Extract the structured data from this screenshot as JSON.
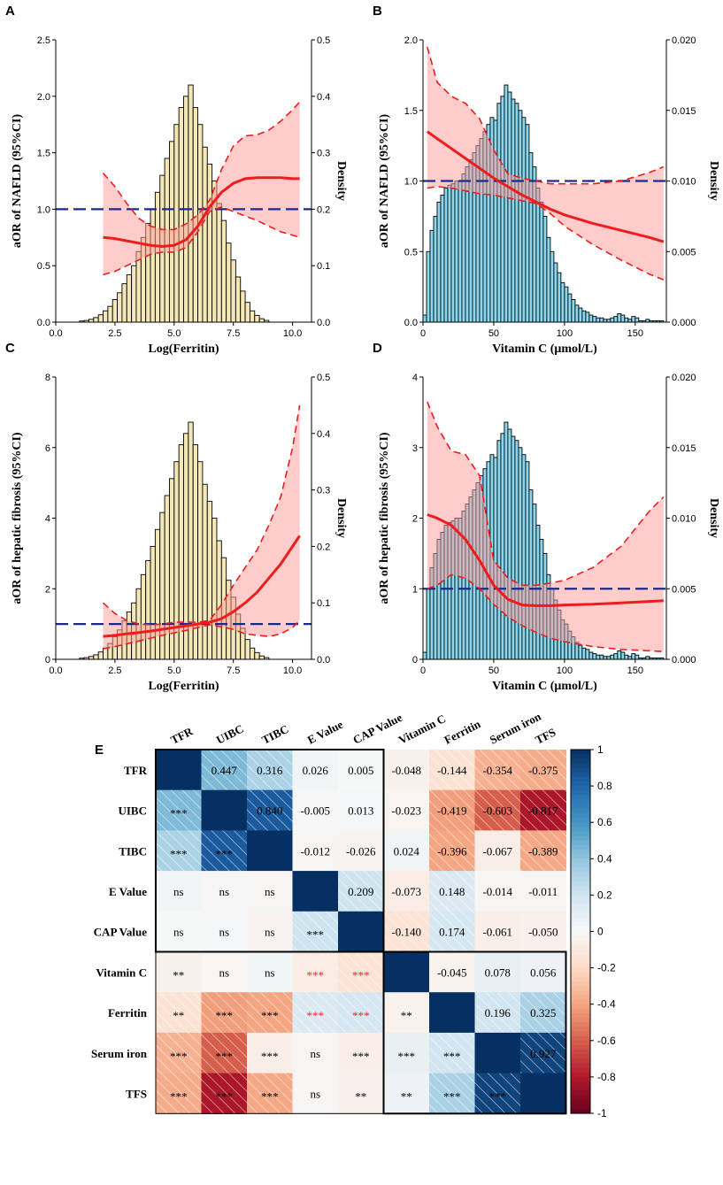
{
  "panels": [
    {
      "letter": "A",
      "type": "restricted-cubic-spline-with-histogram",
      "xlabel": "Log(Ferritin)",
      "ylabel": "aOR of NAFLD (95%CI)",
      "y2label": "Density",
      "xlim": [
        0,
        10.8
      ],
      "ylim": [
        0,
        2.5
      ],
      "y2lim": [
        0,
        0.5
      ],
      "xticks": [
        "0.0",
        "2.5",
        "5.0",
        "7.5",
        "10.0"
      ],
      "xtick_values": [
        0,
        2.5,
        5,
        7.5,
        10
      ],
      "yticks": [
        "0.0",
        "0.5",
        "1.0",
        "1.5",
        "2.0",
        "2.5"
      ],
      "ytick_values": [
        0,
        0.5,
        1,
        1.5,
        2,
        2.5
      ],
      "y2ticks": [
        "0.0",
        "0.1",
        "0.2",
        "0.3",
        "0.4",
        "0.5"
      ],
      "y2tick_values": [
        0,
        0.1,
        0.2,
        0.3,
        0.4,
        0.5
      ],
      "hist_color": "#f5e8b8",
      "hist": {
        "start": 1.0,
        "width": 0.2,
        "density": [
          0.002,
          0.003,
          0.005,
          0.008,
          0.013,
          0.02,
          0.028,
          0.04,
          0.052,
          0.068,
          0.084,
          0.1,
          0.125,
          0.15,
          0.175,
          0.2,
          0.23,
          0.26,
          0.29,
          0.32,
          0.35,
          0.38,
          0.4,
          0.42,
          0.38,
          0.35,
          0.31,
          0.28,
          0.25,
          0.21,
          0.18,
          0.14,
          0.11,
          0.08,
          0.055,
          0.035,
          0.02,
          0.012,
          0.006,
          0.003
        ]
      },
      "spline": {
        "x": [
          2,
          2.5,
          3,
          3.5,
          4,
          4.5,
          5,
          5.5,
          6,
          6.5,
          7,
          7.5,
          8,
          8.5,
          9,
          9.5,
          10,
          10.3
        ],
        "y": [
          0.75,
          0.74,
          0.72,
          0.7,
          0.68,
          0.67,
          0.68,
          0.73,
          0.85,
          1.02,
          1.15,
          1.23,
          1.27,
          1.28,
          1.28,
          1.28,
          1.27,
          1.27
        ],
        "lower": [
          0.42,
          0.45,
          0.5,
          0.55,
          0.6,
          0.62,
          0.62,
          0.66,
          0.8,
          0.98,
          1.02,
          0.98,
          0.94,
          0.9,
          0.85,
          0.8,
          0.77,
          0.75
        ],
        "upper": [
          1.32,
          1.2,
          1.05,
          0.92,
          0.85,
          0.82,
          0.82,
          0.87,
          0.95,
          1.08,
          1.35,
          1.56,
          1.65,
          1.66,
          1.7,
          1.78,
          1.88,
          1.95
        ]
      },
      "reference": 1.0
    },
    {
      "letter": "B",
      "type": "restricted-cubic-spline-with-histogram",
      "xlabel": "Vitamin C (μmol/L)",
      "ylabel": "aOR of NAFLD (95%CI)",
      "y2label": "Density",
      "xlim": [
        0,
        172
      ],
      "ylim": [
        0,
        2.0
      ],
      "y2lim": [
        0,
        0.02
      ],
      "xticks": [
        "0",
        "50",
        "100",
        "150"
      ],
      "xtick_values": [
        0,
        50,
        100,
        150
      ],
      "yticks": [
        "0.0",
        "0.5",
        "1.0",
        "1.5",
        "2.0"
      ],
      "ytick_values": [
        0,
        0.5,
        1,
        1.5,
        2
      ],
      "y2ticks": [
        "0.000",
        "0.005",
        "0.010",
        "0.015",
        "0.020"
      ],
      "y2tick_values": [
        0,
        0.005,
        0.01,
        0.015,
        0.02
      ],
      "hist_color": "#8ad8ef",
      "hist": {
        "start": 0,
        "width": 2.5,
        "density": [
          0.0005,
          0.005,
          0.0065,
          0.0075,
          0.0085,
          0.009,
          0.0095,
          0.0097,
          0.0098,
          0.01,
          0.01,
          0.0105,
          0.011,
          0.0115,
          0.012,
          0.0125,
          0.013,
          0.0135,
          0.014,
          0.0145,
          0.0143,
          0.0155,
          0.016,
          0.0168,
          0.0163,
          0.0158,
          0.0155,
          0.015,
          0.0145,
          0.014,
          0.012,
          0.011,
          0.0095,
          0.0085,
          0.0075,
          0.006,
          0.005,
          0.0042,
          0.0035,
          0.0028,
          0.0025,
          0.002,
          0.0016,
          0.0012,
          0.001,
          0.0008,
          0.0007,
          0.0005,
          0.0004,
          0.0003,
          0.0003,
          0.0002,
          0.0002,
          0.0003,
          0.0004,
          0.0006,
          0.0005,
          0.0003,
          0.0002,
          0.0004,
          0.0003,
          0.0001,
          0.0001,
          0.0002,
          0.0001,
          0.0001,
          0.0001,
          0.0001
        ]
      },
      "spline": {
        "x": [
          3,
          10,
          20,
          30,
          40,
          50,
          60,
          70,
          80,
          90,
          100,
          120,
          140,
          160,
          170
        ],
        "y": [
          1.35,
          1.3,
          1.23,
          1.16,
          1.09,
          1.02,
          0.96,
          0.9,
          0.85,
          0.8,
          0.76,
          0.7,
          0.65,
          0.6,
          0.57
        ],
        "lower": [
          0.95,
          0.96,
          0.95,
          0.93,
          0.91,
          0.9,
          0.88,
          0.86,
          0.84,
          0.77,
          0.68,
          0.55,
          0.44,
          0.34,
          0.3
        ],
        "upper": [
          1.95,
          1.7,
          1.6,
          1.55,
          1.44,
          1.22,
          1.05,
          1.02,
          1.0,
          0.98,
          0.98,
          0.98,
          1.0,
          1.06,
          1.1
        ]
      },
      "reference": 1.0
    },
    {
      "letter": "C",
      "type": "restricted-cubic-spline-with-histogram",
      "xlabel": "Log(Ferritin)",
      "ylabel": "aOR of hepatic fibrosis (95%CI)",
      "y2label": "Density",
      "xlim": [
        0,
        10.8
      ],
      "ylim": [
        0,
        8
      ],
      "y2lim": [
        0,
        0.5
      ],
      "xticks": [
        "0.0",
        "2.5",
        "5.0",
        "7.5",
        "10.0"
      ],
      "xtick_values": [
        0,
        2.5,
        5,
        7.5,
        10
      ],
      "yticks": [
        "0",
        "2",
        "4",
        "6",
        "8"
      ],
      "ytick_values": [
        0,
        2,
        4,
        6,
        8
      ],
      "y2ticks": [
        "0.0",
        "0.1",
        "0.2",
        "0.3",
        "0.4",
        "0.5"
      ],
      "y2tick_values": [
        0,
        0.1,
        0.2,
        0.3,
        0.4,
        0.5
      ],
      "hist_color": "#f5e8b8",
      "hist": {
        "start": 1.0,
        "width": 0.2,
        "density": [
          0.002,
          0.003,
          0.005,
          0.008,
          0.013,
          0.02,
          0.028,
          0.04,
          0.052,
          0.068,
          0.084,
          0.1,
          0.125,
          0.15,
          0.175,
          0.2,
          0.23,
          0.26,
          0.29,
          0.32,
          0.35,
          0.38,
          0.4,
          0.42,
          0.38,
          0.35,
          0.31,
          0.28,
          0.25,
          0.21,
          0.18,
          0.14,
          0.11,
          0.08,
          0.055,
          0.035,
          0.02,
          0.012,
          0.006,
          0.003
        ]
      },
      "spline": {
        "x": [
          2,
          2.5,
          3,
          3.5,
          4,
          4.5,
          5,
          5.5,
          6,
          6.5,
          7,
          7.5,
          8,
          8.5,
          9,
          9.5,
          10,
          10.3
        ],
        "y": [
          0.65,
          0.68,
          0.72,
          0.76,
          0.8,
          0.85,
          0.9,
          0.95,
          1.0,
          1.05,
          1.15,
          1.35,
          1.6,
          1.9,
          2.3,
          2.7,
          3.2,
          3.5
        ],
        "lower": [
          0.3,
          0.36,
          0.44,
          0.52,
          0.6,
          0.68,
          0.75,
          0.82,
          0.9,
          0.98,
          0.92,
          0.85,
          0.72,
          0.68,
          0.65,
          0.72,
          0.9,
          1.1
        ],
        "upper": [
          1.6,
          1.3,
          1.1,
          1.0,
          0.98,
          1.0,
          1.05,
          1.05,
          1.05,
          1.1,
          1.55,
          2.1,
          2.6,
          3.1,
          3.8,
          4.6,
          6.0,
          7.2
        ]
      },
      "reference": 1.0
    },
    {
      "letter": "D",
      "type": "restricted-cubic-spline-with-histogram",
      "xlabel": "Vitamin C (μmol/L)",
      "ylabel": "aOR of hepatic fibrosis (95%CI)",
      "y2label": "Density",
      "xlim": [
        0,
        172
      ],
      "ylim": [
        0,
        4
      ],
      "y2lim": [
        0,
        0.02
      ],
      "xticks": [
        "0",
        "50",
        "100",
        "150"
      ],
      "xtick_values": [
        0,
        50,
        100,
        150
      ],
      "yticks": [
        "0",
        "1",
        "2",
        "3",
        "4"
      ],
      "ytick_values": [
        0,
        1,
        2,
        3,
        4
      ],
      "y2ticks": [
        "0.000",
        "0.005",
        "0.010",
        "0.015",
        "0.020"
      ],
      "y2tick_values": [
        0,
        0.005,
        0.01,
        0.015,
        0.02
      ],
      "hist_color": "#8ad8ef",
      "hist": {
        "start": 0,
        "width": 2.5,
        "density": [
          0.0005,
          0.005,
          0.0065,
          0.0075,
          0.0085,
          0.009,
          0.0095,
          0.0097,
          0.0098,
          0.01,
          0.01,
          0.0105,
          0.011,
          0.0115,
          0.012,
          0.0125,
          0.013,
          0.0135,
          0.014,
          0.0145,
          0.0143,
          0.0155,
          0.016,
          0.0168,
          0.0163,
          0.0158,
          0.0155,
          0.015,
          0.0145,
          0.014,
          0.012,
          0.011,
          0.0095,
          0.0085,
          0.0075,
          0.006,
          0.005,
          0.0042,
          0.0035,
          0.0028,
          0.0025,
          0.002,
          0.0016,
          0.0012,
          0.001,
          0.0008,
          0.0007,
          0.0005,
          0.0004,
          0.0003,
          0.0003,
          0.0002,
          0.0002,
          0.0003,
          0.0004,
          0.0006,
          0.0005,
          0.0003,
          0.0002,
          0.0004,
          0.0003,
          0.0001,
          0.0001,
          0.0002,
          0.0001,
          0.0001,
          0.0001,
          0.0001
        ]
      },
      "spline": {
        "x": [
          3,
          10,
          20,
          30,
          40,
          50,
          60,
          70,
          80,
          90,
          100,
          120,
          140,
          160,
          170
        ],
        "y": [
          2.05,
          2.0,
          1.9,
          1.7,
          1.4,
          1.05,
          0.85,
          0.77,
          0.76,
          0.76,
          0.77,
          0.78,
          0.8,
          0.82,
          0.83
        ],
        "lower": [
          1.0,
          1.05,
          1.2,
          1.15,
          1.0,
          0.78,
          0.6,
          0.48,
          0.38,
          0.3,
          0.25,
          0.18,
          0.14,
          0.12,
          0.11
        ],
        "upper": [
          3.65,
          3.3,
          2.95,
          2.9,
          2.6,
          1.4,
          1.15,
          1.05,
          1.05,
          1.08,
          1.12,
          1.3,
          1.6,
          2.1,
          2.3
        ]
      },
      "reference": 1.0
    }
  ],
  "heatmap": {
    "letter": "E",
    "variables": [
      "TFR",
      "UIBC",
      "TIBC",
      "E Value",
      "CAP Value",
      "Vitamin C",
      "Ferritin",
      "Serum iron",
      "TFS"
    ],
    "upper_values": [
      [
        "",
        "0.447",
        "0.316",
        "0.026",
        "0.005",
        "-0.048",
        "-0.144",
        "-0.354",
        "-0.375"
      ],
      [
        "",
        "",
        "0.840",
        "-0.005",
        "0.013",
        "-0.023",
        "-0.419",
        "-0.603",
        "-0.817"
      ],
      [
        "",
        "",
        "",
        "-0.012",
        "-0.026",
        "0.024",
        "-0.396",
        "-0.067",
        "-0.389"
      ],
      [
        "",
        "",
        "",
        "",
        "0.209",
        "-0.073",
        "0.148",
        "-0.014",
        "-0.011"
      ],
      [
        "",
        "",
        "",
        "",
        "",
        "-0.140",
        "0.174",
        "-0.061",
        "-0.050"
      ],
      [
        "",
        "",
        "",
        "",
        "",
        "",
        "-0.045",
        "0.078",
        "0.056"
      ],
      [
        "",
        "",
        "",
        "",
        "",
        "",
        "",
        "0.196",
        "0.325"
      ],
      [
        "",
        "",
        "",
        "",
        "",
        "",
        "",
        "",
        "0.927"
      ],
      [
        "",
        "",
        "",
        "",
        "",
        "",
        "",
        "",
        ""
      ]
    ],
    "lower_significance": [
      [
        "",
        "",
        "",
        "",
        "",
        "",
        "",
        "",
        ""
      ],
      [
        "***",
        "",
        "",
        "",
        "",
        "",
        "",
        "",
        ""
      ],
      [
        "***",
        "***",
        "",
        "",
        "",
        "",
        "",
        "",
        ""
      ],
      [
        "ns",
        "ns",
        "ns",
        "",
        "",
        "",
        "",
        "",
        ""
      ],
      [
        "ns",
        "ns",
        "ns",
        "***",
        "",
        "",
        "",
        "",
        ""
      ],
      [
        "**",
        "ns",
        "ns",
        "***",
        "***",
        "",
        "",
        "",
        ""
      ],
      [
        "**",
        "***",
        "***",
        "***",
        "***",
        "**",
        "",
        "",
        ""
      ],
      [
        "***",
        "***",
        "***",
        "ns",
        "***",
        "***",
        "***",
        "",
        ""
      ],
      [
        "***",
        "***",
        "***",
        "ns",
        "**",
        "**",
        "***",
        "***",
        ""
      ]
    ],
    "red_significance_cells": [
      [
        5,
        3
      ],
      [
        5,
        4
      ],
      [
        6,
        3
      ],
      [
        6,
        4
      ]
    ],
    "matrix": [
      [
        1.0,
        0.447,
        0.316,
        0.026,
        0.005,
        -0.048,
        -0.144,
        -0.354,
        -0.375
      ],
      [
        0.447,
        1.0,
        0.84,
        -0.005,
        0.013,
        -0.023,
        -0.419,
        -0.603,
        -0.817
      ],
      [
        0.316,
        0.84,
        1.0,
        -0.012,
        -0.026,
        0.024,
        -0.396,
        -0.067,
        -0.389
      ],
      [
        0.026,
        -0.005,
        -0.012,
        1.0,
        0.209,
        -0.073,
        0.148,
        -0.014,
        -0.011
      ],
      [
        0.005,
        0.013,
        -0.026,
        0.209,
        1.0,
        -0.14,
        0.174,
        -0.061,
        -0.05
      ],
      [
        -0.048,
        -0.023,
        0.024,
        -0.073,
        -0.14,
        1.0,
        -0.045,
        0.078,
        0.056
      ],
      [
        -0.144,
        -0.419,
        -0.396,
        0.148,
        0.174,
        -0.045,
        1.0,
        0.196,
        0.325
      ],
      [
        -0.354,
        -0.603,
        -0.067,
        -0.014,
        -0.061,
        0.078,
        0.196,
        1.0,
        0.927
      ],
      [
        -0.375,
        -0.817,
        -0.389,
        -0.011,
        -0.05,
        0.056,
        0.325,
        0.927,
        1.0
      ]
    ],
    "colorbar": {
      "ticks": [
        "1",
        "0.8",
        "0.6",
        "0.4",
        "0.2",
        "0",
        "-0.2",
        "-0.4",
        "-0.6",
        "-0.8",
        "-1"
      ],
      "tick_values": [
        1,
        0.8,
        0.6,
        0.4,
        0.2,
        0,
        -0.2,
        -0.4,
        -0.6,
        -0.8,
        -1
      ]
    }
  },
  "chart_data": [
    {
      "type": "line",
      "title": "A",
      "xlabel": "Log(Ferritin)",
      "ylabel": "aOR of NAFLD (95%CI)",
      "y2label": "Density",
      "xlim": [
        0,
        10.8
      ],
      "ylim": [
        0,
        2.5
      ]
    },
    {
      "type": "line",
      "title": "B",
      "xlabel": "Vitamin C (μmol/L)",
      "ylabel": "aOR of NAFLD (95%CI)",
      "y2label": "Density",
      "xlim": [
        0,
        172
      ],
      "ylim": [
        0,
        2.0
      ]
    },
    {
      "type": "line",
      "title": "C",
      "xlabel": "Log(Ferritin)",
      "ylabel": "aOR of hepatic fibrosis (95%CI)",
      "y2label": "Density",
      "xlim": [
        0,
        10.8
      ],
      "ylim": [
        0,
        8
      ]
    },
    {
      "type": "line",
      "title": "D",
      "xlabel": "Vitamin C (μmol/L)",
      "ylabel": "aOR of hepatic fibrosis (95%CI)",
      "y2label": "Density",
      "xlim": [
        0,
        172
      ],
      "ylim": [
        0,
        4
      ]
    },
    {
      "type": "heatmap",
      "title": "E",
      "categories": [
        "TFR",
        "UIBC",
        "TIBC",
        "E Value",
        "CAP Value",
        "Vitamin C",
        "Ferritin",
        "Serum iron",
        "TFS"
      ],
      "range": [
        -1,
        1
      ]
    }
  ]
}
